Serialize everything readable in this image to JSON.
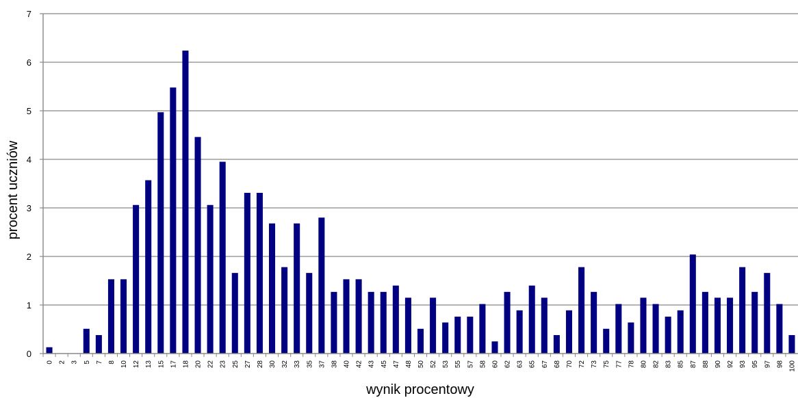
{
  "chart_data": {
    "type": "bar",
    "xlabel": "wynik procentowy",
    "ylabel": "procent uczniów",
    "ylim": [
      0,
      7
    ],
    "yticks": [
      "0",
      "1",
      "2",
      "3",
      "4",
      "5",
      "6",
      "7"
    ],
    "grid": true,
    "legend": "none",
    "bar_color": "#000080",
    "categories": [
      "0",
      "2",
      "3",
      "5",
      "7",
      "8",
      "10",
      "12",
      "13",
      "15",
      "17",
      "18",
      "20",
      "22",
      "23",
      "25",
      "27",
      "28",
      "30",
      "32",
      "33",
      "35",
      "37",
      "38",
      "40",
      "42",
      "43",
      "45",
      "47",
      "48",
      "50",
      "52",
      "53",
      "55",
      "57",
      "58",
      "60",
      "62",
      "63",
      "65",
      "67",
      "68",
      "70",
      "72",
      "73",
      "75",
      "77",
      "78",
      "80",
      "82",
      "83",
      "85",
      "87",
      "88",
      "90",
      "92",
      "93",
      "95",
      "97",
      "98",
      "100"
    ],
    "values": [
      0.13,
      0,
      0,
      0.51,
      0.38,
      1.53,
      1.53,
      3.06,
      3.57,
      4.97,
      5.48,
      6.24,
      4.46,
      3.06,
      3.95,
      1.66,
      3.31,
      3.31,
      2.68,
      1.78,
      2.68,
      1.66,
      2.8,
      1.27,
      1.53,
      1.53,
      1.27,
      1.27,
      1.4,
      1.15,
      0.51,
      1.15,
      0.64,
      0.76,
      0.76,
      1.02,
      0.25,
      1.27,
      0.89,
      1.4,
      1.15,
      0.38,
      0.89,
      1.78,
      1.27,
      0.51,
      1.02,
      0.64,
      1.15,
      1.02,
      0.76,
      0.89,
      2.04,
      1.27,
      1.15,
      1.15,
      1.78,
      1.27,
      1.66,
      1.02,
      0.38
    ]
  }
}
